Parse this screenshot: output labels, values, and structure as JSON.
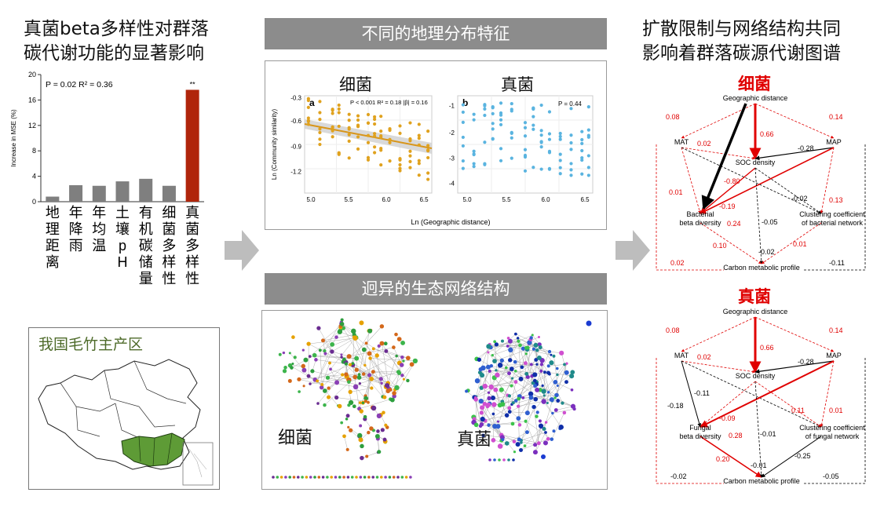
{
  "left": {
    "title_line1": "真菌beta多样性对群落",
    "title_line2": "碳代谢功能的显著影响",
    "map_label": "我国毛竹主产区"
  },
  "middle": {
    "banner_top": "不同的地理分布特征",
    "banner_bottom": "迥异的生态网络结构",
    "label_bacteria": "细菌",
    "label_fungi": "真菌",
    "net_label_bacteria": "细菌",
    "net_label_fungi": "真菌",
    "panel_a": "a",
    "panel_b": "b",
    "stat_a": "P < 0.001  R² = 0.18  |β| = 0.16",
    "stat_b": "P = 0.44",
    "xlabel": "Ln (Geographic distance)",
    "ylabel": "Ln (Community similarity)"
  },
  "right": {
    "title_line1": "扩散限制与网络结构共同",
    "title_line2": "影响着群落碳源代谢图谱",
    "bact_header": "细菌",
    "fungi_header": "真菌",
    "bact_nodes": {
      "geo": "Geographic distance",
      "mat": "MAT",
      "map": "MAP",
      "soc": "SOC density",
      "beta1": "Bacterial",
      "beta2": "beta diversity",
      "cc1": "Clustering coefficient",
      "cc2": "of bacterial network",
      "carbon": "Carbon metabolic profile"
    },
    "fungi_nodes": {
      "geo": "Geographic distance",
      "mat": "MAT",
      "map": "MAP",
      "soc": "SOC density",
      "beta1": "Fungal",
      "beta2": "beta diversity",
      "cc1": "Clustering coefficient",
      "cc2": "of fungal network",
      "carbon": "Carbon metabolic profile"
    },
    "bact_coefs": {
      "geo_mat": "0.08",
      "geo_map": "0.14",
      "geo_soc": "0.66",
      "mat_soc": "0.02",
      "map_soc": "-0.28",
      "mat_beta": "0.01",
      "soc_beta": "-0.80",
      "map_beta": "0.24",
      "soc_cc": "-0.02",
      "map_cc": "0.13",
      "mat_cc": "-0.19",
      "soc_carbon": "-0.02",
      "beta_carbon": "0.10",
      "cc_carbon": "0.01",
      "mat_carbon": "0.02",
      "map_carbon": "-0.11",
      "beta_cc": "-0.05"
    },
    "fungi_coefs": {
      "geo_mat": "0.08",
      "geo_map": "0.14",
      "geo_soc": "0.66",
      "mat_soc": "0.02",
      "map_soc": "-0.28",
      "mat_cc": "-0.11",
      "mat_beta": "-0.18",
      "soc_beta": "-0.09",
      "map_beta": "0.28",
      "soc_cc": "0.11",
      "map_cc": "0.01",
      "beta_carbon": "0.20",
      "soc_carbon": "-0.01",
      "beta_cc": "-0.01",
      "cc_carbon": "-0.25",
      "mat_carbon": "-0.02",
      "map_carbon": "-0.05"
    }
  },
  "chart_data": [
    {
      "type": "bar",
      "title": "",
      "ylabel": "Increase in MSE (%)",
      "annotation": "P = 0.02  R² = 0.36",
      "significance": "**",
      "ylim": [
        0,
        20
      ],
      "yticks": [
        "0",
        "4",
        "8",
        "12",
        "16",
        "20"
      ],
      "categories": [
        "地理距离",
        "年降雨",
        "年均温",
        "土壤pH",
        "有机碳储量",
        "细菌多样性",
        "真菌多样性"
      ],
      "values": [
        0.8,
        2.6,
        2.5,
        3.2,
        3.6,
        2.5,
        17.6
      ],
      "colors": [
        "#7f7f7f",
        "#7f7f7f",
        "#7f7f7f",
        "#7f7f7f",
        "#7f7f7f",
        "#7f7f7f",
        "#b0250b"
      ]
    }
  ]
}
